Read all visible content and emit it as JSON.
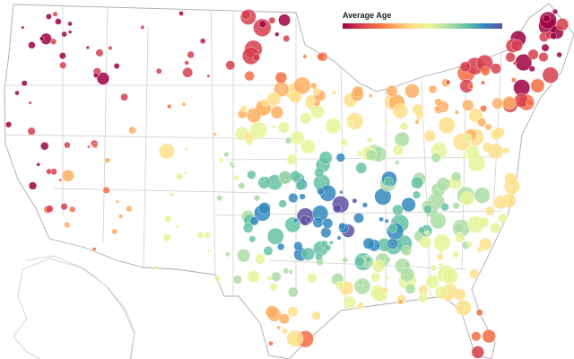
{
  "legend": {
    "title": "Average Age",
    "colors": [
      "#9e0142",
      "#d53e4f",
      "#f46d43",
      "#fdae61",
      "#fee08b",
      "#e6f598",
      "#abdda4",
      "#66c2a5",
      "#3288bd",
      "#5e4fa2"
    ]
  }
}
